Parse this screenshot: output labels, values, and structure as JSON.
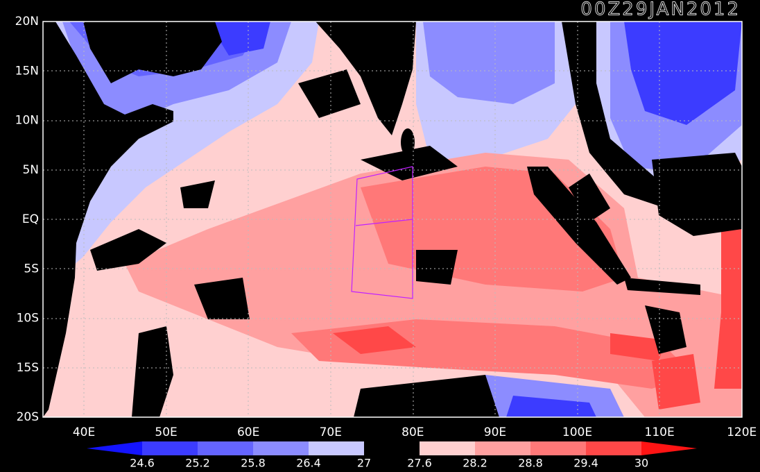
{
  "title": "00Z29JAN2012",
  "lat_labels": [
    "20N",
    "15N",
    "10N",
    "5N",
    "EQ",
    "5S",
    "10S",
    "15S",
    "20S"
  ],
  "lon_labels": [
    "40E",
    "50E",
    "60E",
    "70E",
    "80E",
    "90E",
    "100E",
    "110E",
    "120E"
  ],
  "colorbar": {
    "ticks": [
      24.6,
      25.2,
      25.8,
      26.4,
      27,
      27.6,
      28.2,
      28.8,
      29.4,
      30
    ],
    "colors": [
      "#1414ff",
      "#3c3cff",
      "#6464ff",
      "#8c8cff",
      "#c8c8ff",
      "#000000",
      "#ffd0d0",
      "#ffa0a0",
      "#ff7878",
      "#ff4848",
      "#ff1414"
    ]
  }
}
